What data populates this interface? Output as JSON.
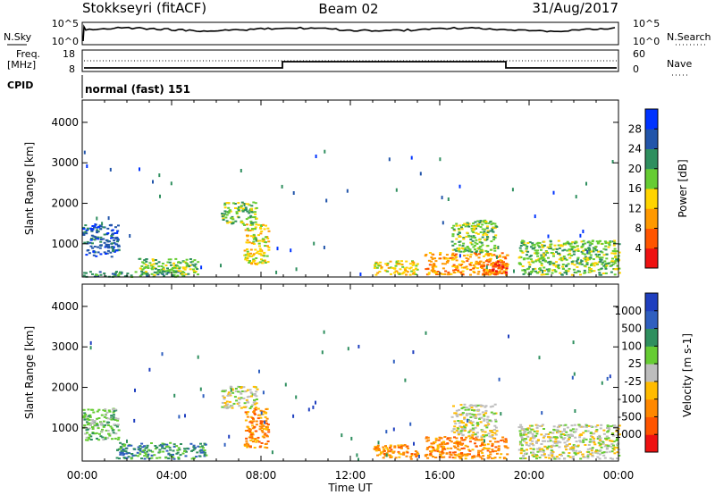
{
  "header": {
    "station": "Stokkseyri (fitACF)",
    "beam": "Beam 02",
    "date": "31/Aug/2017"
  },
  "top_panels": {
    "nsky_label": "N.Sky",
    "nsky_ticks": [
      "10^5",
      "10^0"
    ],
    "nsearch_label": "N.Search",
    "nsearch_ticks": [
      "10^5",
      "10^0"
    ],
    "freq_label_line1": "Freq.",
    "freq_label_line2": "[MHz]",
    "freq_ticks": [
      "18",
      "8"
    ],
    "nave_label": "Nave",
    "nave_ticks": [
      "60",
      "0"
    ],
    "cpid_label": "CPID",
    "cpid_text": "normal (fast) 151"
  },
  "chart_data": [
    {
      "type": "heatmap",
      "name": "power-panel",
      "ylabel": "Slant Range [km]",
      "yticks": [
        1000,
        2000,
        3000,
        4000
      ],
      "ylim": [
        180,
        4550
      ],
      "xlim_hours": [
        0,
        24
      ],
      "colorbar": {
        "title": "Power [dB]",
        "ticks": [
          "4",
          "8",
          "12",
          "16",
          "20",
          "24",
          "28"
        ],
        "colors": [
          "#0033ff",
          "#2255aa",
          "#2f8f5f",
          "#66cc33",
          "#ffd400",
          "#ff9900",
          "#ff5500",
          "#ee1111"
        ]
      },
      "echo_regions": [
        {
          "t0": 0.0,
          "t1": 1.6,
          "r0": 700,
          "r1": 1500,
          "level": 1
        },
        {
          "t0": 0.0,
          "t1": 4.5,
          "r0": 200,
          "r1": 350,
          "level": 2
        },
        {
          "t0": 2.5,
          "t1": 5.2,
          "r0": 250,
          "r1": 650,
          "level": 3
        },
        {
          "t0": 6.2,
          "t1": 7.8,
          "r0": 1500,
          "r1": 2050,
          "level": 3
        },
        {
          "t0": 7.2,
          "t1": 8.3,
          "r0": 500,
          "r1": 1500,
          "level": 4
        },
        {
          "t0": 13.0,
          "t1": 15.0,
          "r0": 250,
          "r1": 600,
          "level": 4
        },
        {
          "t0": 15.3,
          "t1": 19.0,
          "r0": 250,
          "r1": 800,
          "level": 5
        },
        {
          "t0": 16.5,
          "t1": 18.5,
          "r0": 800,
          "r1": 1600,
          "level": 3
        },
        {
          "t0": 18.3,
          "t1": 19.0,
          "r0": 250,
          "r1": 600,
          "level": 6
        },
        {
          "t0": 19.5,
          "t1": 24.0,
          "r0": 250,
          "r1": 1100,
          "level": 3
        }
      ]
    },
    {
      "type": "heatmap",
      "name": "velocity-panel",
      "ylabel": "Slant Range [km]",
      "yticks": [
        1000,
        2000,
        3000,
        4000
      ],
      "ylim": [
        180,
        4550
      ],
      "xlim_hours": [
        0,
        24
      ],
      "xticks": [
        "00:00",
        "04:00",
        "08:00",
        "12:00",
        "16:00",
        "20:00",
        "00:00"
      ],
      "xlabel": "Time UT",
      "colorbar": {
        "title": "Velocity [m s-1]",
        "ticks": [
          "1000",
          "500",
          "100",
          "25",
          "-25",
          "-100",
          "-500",
          "-1000"
        ],
        "colors": [
          "#1f3fbf",
          "#2f5fbf",
          "#2f8f5f",
          "#66cc33",
          "#bdbdbd",
          "#ffbb00",
          "#ff8800",
          "#ff5500",
          "#ee1111"
        ]
      },
      "echo_regions": [
        {
          "t0": 0.0,
          "t1": 1.6,
          "r0": 700,
          "r1": 1500,
          "level": 3
        },
        {
          "t0": 1.5,
          "t1": 5.5,
          "r0": 250,
          "r1": 650,
          "level": 2
        },
        {
          "t0": 6.2,
          "t1": 7.8,
          "r0": 1500,
          "r1": 2050,
          "level": 4
        },
        {
          "t0": 7.2,
          "t1": 8.3,
          "r0": 500,
          "r1": 1500,
          "level": 6
        },
        {
          "t0": 13.0,
          "t1": 15.0,
          "r0": 250,
          "r1": 600,
          "level": 6
        },
        {
          "t0": 15.3,
          "t1": 19.0,
          "r0": 250,
          "r1": 800,
          "level": 6
        },
        {
          "t0": 16.5,
          "t1": 18.5,
          "r0": 800,
          "r1": 1600,
          "level": 4
        },
        {
          "t0": 19.5,
          "t1": 24.0,
          "r0": 250,
          "r1": 1100,
          "level": 4
        }
      ]
    }
  ]
}
